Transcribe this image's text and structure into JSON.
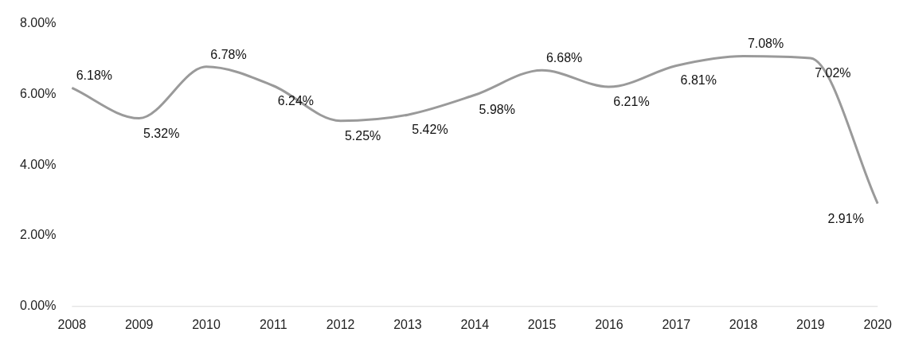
{
  "chart_data": {
    "type": "line",
    "categories": [
      "2008",
      "2009",
      "2010",
      "2011",
      "2012",
      "2013",
      "2014",
      "2015",
      "2016",
      "2017",
      "2018",
      "2019",
      "2020"
    ],
    "values": [
      6.18,
      5.32,
      6.78,
      6.24,
      5.25,
      5.42,
      5.98,
      6.68,
      6.21,
      6.81,
      7.08,
      7.02,
      2.91
    ],
    "value_labels": [
      "6.18%",
      "5.32%",
      "6.78%",
      "6.24%",
      "5.25%",
      "5.42%",
      "5.98%",
      "6.68%",
      "6.21%",
      "6.81%",
      "7.08%",
      "7.02%",
      "2.91%"
    ],
    "color": "#9a9a9a",
    "ylim": [
      0,
      8
    ],
    "yticks": [
      {
        "value": 0,
        "label": "0.00%"
      },
      {
        "value": 2,
        "label": "2.00%"
      },
      {
        "value": 4,
        "label": "4.00%"
      },
      {
        "value": 6,
        "label": "6.00%"
      },
      {
        "value": 8,
        "label": "8.00%"
      }
    ],
    "grid": false,
    "legend": false,
    "marker": "none",
    "line_style": "solid"
  }
}
